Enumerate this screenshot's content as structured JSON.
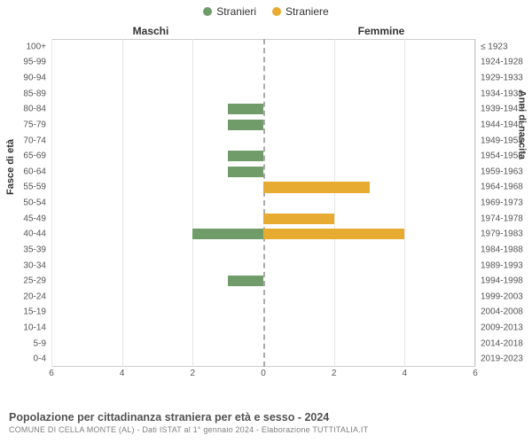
{
  "chart": {
    "type": "population-pyramid",
    "legend": [
      {
        "label": "Stranieri",
        "color": "#6f9c68"
      },
      {
        "label": "Straniere",
        "color": "#e8ab31"
      }
    ],
    "headers": {
      "left": "Maschi",
      "right": "Femmine"
    },
    "y_axis_left_title": "Fasce di età",
    "y_axis_right_title": "Anni di nascita",
    "x_max": 6,
    "x_ticks": [
      6,
      4,
      2,
      0,
      2,
      4,
      6
    ],
    "grid_color": "#e6e6e6",
    "center_line_color": "#aaaaaa",
    "border_color": "#cccccc",
    "background_color": "#ffffff",
    "bar_height_pct": 70,
    "rows": [
      {
        "age": "100+",
        "birth": "≤ 1923",
        "m": 0,
        "f": 0
      },
      {
        "age": "95-99",
        "birth": "1924-1928",
        "m": 0,
        "f": 0
      },
      {
        "age": "90-94",
        "birth": "1929-1933",
        "m": 0,
        "f": 0
      },
      {
        "age": "85-89",
        "birth": "1934-1938",
        "m": 0,
        "f": 0
      },
      {
        "age": "80-84",
        "birth": "1939-1943",
        "m": 1,
        "f": 0
      },
      {
        "age": "75-79",
        "birth": "1944-1948",
        "m": 1,
        "f": 0
      },
      {
        "age": "70-74",
        "birth": "1949-1953",
        "m": 0,
        "f": 0
      },
      {
        "age": "65-69",
        "birth": "1954-1958",
        "m": 1,
        "f": 0
      },
      {
        "age": "60-64",
        "birth": "1959-1963",
        "m": 1,
        "f": 0
      },
      {
        "age": "55-59",
        "birth": "1964-1968",
        "m": 0,
        "f": 3
      },
      {
        "age": "50-54",
        "birth": "1969-1973",
        "m": 0,
        "f": 0
      },
      {
        "age": "45-49",
        "birth": "1974-1978",
        "m": 0,
        "f": 2
      },
      {
        "age": "40-44",
        "birth": "1979-1983",
        "m": 2,
        "f": 4
      },
      {
        "age": "35-39",
        "birth": "1984-1988",
        "m": 0,
        "f": 0
      },
      {
        "age": "30-34",
        "birth": "1989-1993",
        "m": 0,
        "f": 0
      },
      {
        "age": "25-29",
        "birth": "1994-1998",
        "m": 1,
        "f": 0
      },
      {
        "age": "20-24",
        "birth": "1999-2003",
        "m": 0,
        "f": 0
      },
      {
        "age": "15-19",
        "birth": "2004-2008",
        "m": 0,
        "f": 0
      },
      {
        "age": "10-14",
        "birth": "2009-2013",
        "m": 0,
        "f": 0
      },
      {
        "age": "5-9",
        "birth": "2014-2018",
        "m": 0,
        "f": 0
      },
      {
        "age": "0-4",
        "birth": "2019-2023",
        "m": 0,
        "f": 0
      }
    ]
  },
  "titles": {
    "main": "Popolazione per cittadinanza straniera per età e sesso - 2024",
    "sub": "COMUNE DI CELLA MONTE (AL) - Dati ISTAT al 1° gennaio 2024 - Elaborazione TUTTITALIA.IT"
  },
  "colors": {
    "title": "#525252",
    "subtitle": "#808080",
    "tick_text": "#555555"
  }
}
